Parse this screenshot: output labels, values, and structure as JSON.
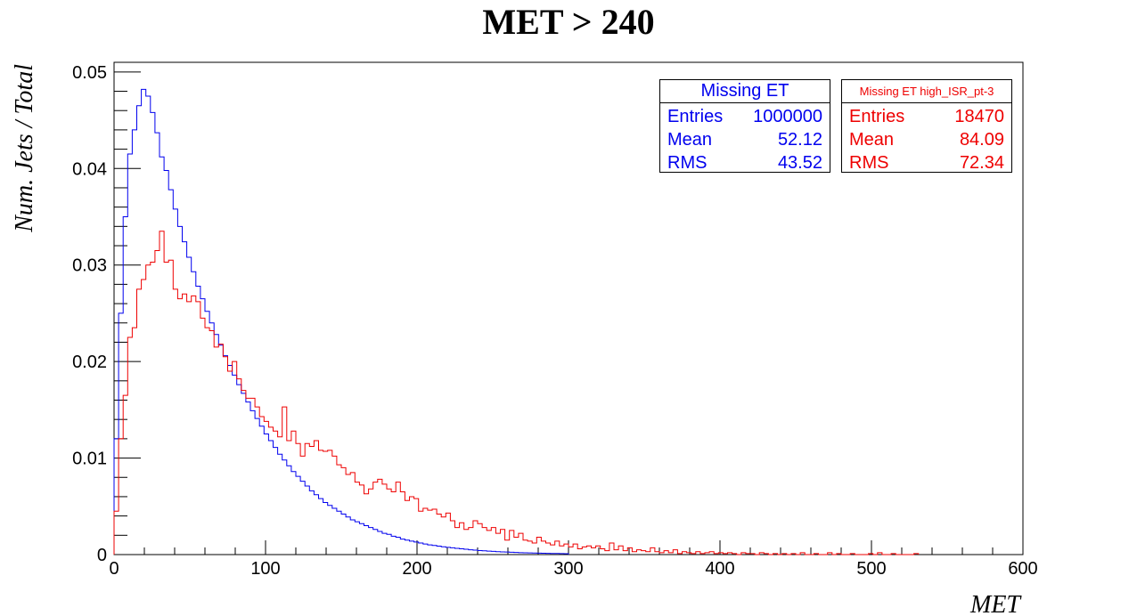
{
  "chart_data": {
    "type": "histogram",
    "title": "MET > 240",
    "xlabel": "MET",
    "ylabel": "Num. Jets / Total",
    "xlim": [
      0,
      600
    ],
    "ylim": [
      0,
      0.051
    ],
    "x_ticks": [
      "0",
      "100",
      "200",
      "300",
      "400",
      "500",
      "600"
    ],
    "y_ticks": [
      "0",
      "0.01",
      "0.02",
      "0.03",
      "0.04",
      "0.05"
    ],
    "bin_width": 3,
    "series": [
      {
        "name": "Missing ET",
        "color": "#0000ee",
        "values": [
          0.012,
          0.025,
          0.035,
          0.0415,
          0.044,
          0.0465,
          0.0482,
          0.0475,
          0.0458,
          0.0437,
          0.0412,
          0.0398,
          0.0378,
          0.0358,
          0.034,
          0.0324,
          0.0308,
          0.0293,
          0.0278,
          0.0265,
          0.0252,
          0.024,
          0.0228,
          0.0217,
          0.0206,
          0.0196,
          0.0186,
          0.0176,
          0.0167,
          0.0158,
          0.0149,
          0.0141,
          0.0133,
          0.0125,
          0.0118,
          0.0111,
          0.0104,
          0.0098,
          0.0092,
          0.0086,
          0.0081,
          0.0076,
          0.0071,
          0.0066,
          0.0062,
          0.0058,
          0.0054,
          0.0051,
          0.0048,
          0.0045,
          0.0042,
          0.0039,
          0.0036,
          0.0034,
          0.0032,
          0.003,
          0.0028,
          0.0026,
          0.0024,
          0.0022,
          0.0021,
          0.0019,
          0.0018,
          0.0016,
          0.0015,
          0.0014,
          0.0013,
          0.0012,
          0.0011,
          0.001,
          0.00095,
          0.00088,
          0.00081,
          0.00075,
          0.0007,
          0.00065,
          0.0006,
          0.00055,
          0.0005,
          0.00046,
          0.00042,
          0.00039,
          0.00036,
          0.00033,
          0.0003,
          0.00028,
          0.00026,
          0.00024,
          0.00022,
          0.0002,
          0.00018,
          0.00017,
          0.00016,
          0.00015,
          0.00014,
          0.00013,
          0.00012,
          0.00011,
          0.0001,
          9e-05
        ],
        "stats": {
          "title": "Missing ET",
          "entries_label": "Entries",
          "entries": "1000000",
          "mean_label": "Mean",
          "mean": "52.12",
          "rms_label": "RMS",
          "rms": "43.52"
        }
      },
      {
        "name": "Missing ET high_ISR_pt-3",
        "color": "#ee0000",
        "values": [
          0.0045,
          0.012,
          0.0165,
          0.0225,
          0.0235,
          0.0275,
          0.0285,
          0.03,
          0.0303,
          0.0315,
          0.0335,
          0.0303,
          0.0305,
          0.0275,
          0.0265,
          0.027,
          0.0262,
          0.0268,
          0.0262,
          0.0245,
          0.0235,
          0.0232,
          0.0215,
          0.0218,
          0.0205,
          0.019,
          0.02,
          0.0182,
          0.017,
          0.0162,
          0.0162,
          0.0153,
          0.0143,
          0.0138,
          0.0132,
          0.0128,
          0.0122,
          0.0153,
          0.0118,
          0.0128,
          0.0115,
          0.0102,
          0.0115,
          0.0112,
          0.0118,
          0.0108,
          0.0107,
          0.0108,
          0.0102,
          0.0093,
          0.009,
          0.0083,
          0.0085,
          0.0075,
          0.0072,
          0.0063,
          0.0068,
          0.0075,
          0.0078,
          0.0073,
          0.0068,
          0.0065,
          0.0075,
          0.0065,
          0.0056,
          0.006,
          0.0058,
          0.0045,
          0.0048,
          0.0046,
          0.0047,
          0.0042,
          0.0039,
          0.0043,
          0.0035,
          0.0028,
          0.0033,
          0.0026,
          0.0028,
          0.0035,
          0.0032,
          0.0028,
          0.0025,
          0.0028,
          0.0022,
          0.0026,
          0.0015,
          0.0025,
          0.0018,
          0.0022,
          0.0015,
          0.0014,
          0.0012,
          0.0018,
          0.0014,
          0.0012,
          0.001,
          0.0014,
          0.0009,
          0.0011,
          0.0008,
          0.0011,
          0.0006,
          0.0008,
          0.0009,
          0.0007,
          0.0009,
          0.0006,
          0.0004,
          0.0012,
          0.0005,
          0.0009,
          0.0004,
          0.0007,
          0.0003,
          0.0005,
          0.0004,
          0.0003,
          0.0007,
          0.0003,
          0.0002,
          0.0004,
          0.0002,
          0.0005,
          0.0001,
          0.0003,
          0.0002,
          0.0001,
          0.0003,
          0.0001,
          0.0002,
          0.0003,
          0.0001,
          0.0002,
          0.0001,
          0.0002,
          0.0001,
          0.0,
          0.0002,
          0.0001,
          0.0001,
          0.0,
          0.0002,
          0.0001,
          0.0,
          0.0001,
          0.0,
          0.0001,
          0.0,
          0.0001,
          0.0,
          0.0002,
          0.0,
          0.0,
          0.0001,
          0.0,
          0.0,
          0.0002,
          0.0,
          0.0001,
          0.0,
          0.0,
          0.0001,
          0.0,
          0.0,
          0.0,
          0.0001,
          0.0,
          0.0002,
          0.0,
          0.0,
          0.0001,
          0.0,
          0.0,
          0.0,
          0.0,
          0.0001
        ],
        "stats": {
          "title": "Missing ET high_ISR_pt-3",
          "entries_label": "Entries",
          "entries": "18470",
          "mean_label": "Mean",
          "mean": "84.09",
          "rms_label": "RMS",
          "rms": "72.34"
        }
      }
    ]
  }
}
